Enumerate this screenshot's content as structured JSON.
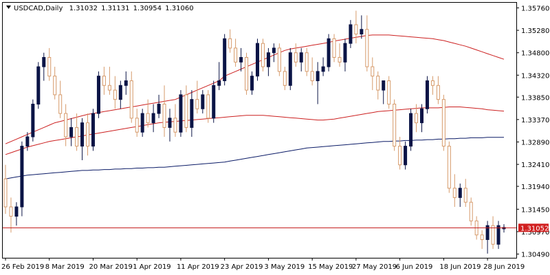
{
  "header": {
    "symbol": "USDCAD",
    "timeframe": "Daily",
    "open": "1.31032",
    "high": "1.31131",
    "low": "1.30954",
    "close": "1.31060"
  },
  "colors": {
    "up_candle": "#0b1446",
    "down_candle_stroke": "#d69a6a",
    "down_candle_fill": "#ffffff",
    "ma_red": "#cc1f1f",
    "ma_blue": "#0a1a66",
    "price_line": "#c21515",
    "price_label_bg": "#d11f1f"
  },
  "price_label": "1.31052",
  "chart_data": {
    "type": "candlestick",
    "title": "USDCAD,Daily",
    "ylim": [
      1.3041,
      1.3587
    ],
    "yticks": [
      "1.35760",
      "1.35280",
      "1.34800",
      "1.34320",
      "1.33850",
      "1.33370",
      "1.32890",
      "1.32410",
      "1.31940",
      "1.31450",
      "1.30970",
      "1.30490"
    ],
    "xticks": [
      "26 Feb 2019",
      "8 Mar 2019",
      "20 Mar 2019",
      "1 Apr 2019",
      "11 Apr 2019",
      "23 Apr 2019",
      "3 May 2019",
      "15 May 2019",
      "27 May 2019",
      "6 Jun 2019",
      "18 Jun 2019",
      "28 Jun 2019"
    ],
    "xtick_index": [
      0,
      8,
      16,
      24,
      32,
      40,
      48,
      56,
      64,
      72,
      80,
      88
    ],
    "current_price": 1.31052,
    "candles": [
      [
        1.321,
        1.324,
        1.3135,
        1.315
      ],
      [
        1.315,
        1.317,
        1.3095,
        1.313
      ],
      [
        1.313,
        1.316,
        1.311,
        1.315
      ],
      [
        1.315,
        1.329,
        1.313,
        1.328
      ],
      [
        1.328,
        1.331,
        1.327,
        1.33
      ],
      [
        1.33,
        1.338,
        1.329,
        1.337
      ],
      [
        1.337,
        1.346,
        1.336,
        1.345
      ],
      [
        1.345,
        1.348,
        1.342,
        1.347
      ],
      [
        1.347,
        1.349,
        1.342,
        1.343
      ],
      [
        1.343,
        1.345,
        1.338,
        1.339
      ],
      [
        1.339,
        1.342,
        1.334,
        1.335
      ],
      [
        1.335,
        1.337,
        1.328,
        1.33
      ],
      [
        1.33,
        1.334,
        1.328,
        1.332
      ],
      [
        1.332,
        1.335,
        1.327,
        1.328
      ],
      [
        1.328,
        1.334,
        1.325,
        1.333
      ],
      [
        1.333,
        1.335,
        1.326,
        1.328
      ],
      [
        1.328,
        1.336,
        1.327,
        1.335
      ],
      [
        1.335,
        1.344,
        1.334,
        1.343
      ],
      [
        1.343,
        1.345,
        1.339,
        1.341
      ],
      [
        1.341,
        1.345,
        1.339,
        1.34
      ],
      [
        1.34,
        1.343,
        1.336,
        1.338
      ],
      [
        1.338,
        1.342,
        1.336,
        1.341
      ],
      [
        1.341,
        1.344,
        1.339,
        1.342
      ],
      [
        1.342,
        1.344,
        1.333,
        1.334
      ],
      [
        1.334,
        1.336,
        1.33,
        1.331
      ],
      [
        1.331,
        1.336,
        1.33,
        1.335
      ],
      [
        1.335,
        1.338,
        1.332,
        1.333
      ],
      [
        1.333,
        1.337,
        1.331,
        1.335
      ],
      [
        1.335,
        1.339,
        1.334,
        1.337
      ],
      [
        1.337,
        1.341,
        1.33,
        1.332
      ],
      [
        1.332,
        1.336,
        1.329,
        1.334
      ],
      [
        1.334,
        1.337,
        1.33,
        1.331
      ],
      [
        1.331,
        1.34,
        1.33,
        1.339
      ],
      [
        1.339,
        1.341,
        1.331,
        1.332
      ],
      [
        1.332,
        1.34,
        1.33,
        1.338
      ],
      [
        1.338,
        1.342,
        1.335,
        1.336
      ],
      [
        1.336,
        1.34,
        1.335,
        1.339
      ],
      [
        1.339,
        1.34,
        1.333,
        1.334
      ],
      [
        1.334,
        1.342,
        1.333,
        1.341
      ],
      [
        1.341,
        1.346,
        1.34,
        1.342
      ],
      [
        1.342,
        1.352,
        1.341,
        1.351
      ],
      [
        1.351,
        1.353,
        1.348,
        1.349
      ],
      [
        1.349,
        1.351,
        1.345,
        1.346
      ],
      [
        1.346,
        1.349,
        1.344,
        1.347
      ],
      [
        1.347,
        1.348,
        1.339,
        1.34
      ],
      [
        1.34,
        1.344,
        1.339,
        1.343
      ],
      [
        1.343,
        1.351,
        1.342,
        1.35
      ],
      [
        1.35,
        1.351,
        1.344,
        1.345
      ],
      [
        1.345,
        1.349,
        1.343,
        1.348
      ],
      [
        1.348,
        1.35,
        1.346,
        1.349
      ],
      [
        1.349,
        1.35,
        1.343,
        1.344
      ],
      [
        1.344,
        1.345,
        1.34,
        1.341
      ],
      [
        1.341,
        1.349,
        1.34,
        1.348
      ],
      [
        1.348,
        1.35,
        1.345,
        1.346
      ],
      [
        1.346,
        1.349,
        1.344,
        1.348
      ],
      [
        1.348,
        1.349,
        1.343,
        1.344
      ],
      [
        1.344,
        1.347,
        1.341,
        1.342
      ],
      [
        1.342,
        1.346,
        1.337,
        1.344
      ],
      [
        1.344,
        1.347,
        1.343,
        1.345
      ],
      [
        1.345,
        1.352,
        1.344,
        1.351
      ],
      [
        1.351,
        1.352,
        1.346,
        1.347
      ],
      [
        1.347,
        1.35,
        1.345,
        1.346
      ],
      [
        1.346,
        1.351,
        1.344,
        1.35
      ],
      [
        1.35,
        1.355,
        1.349,
        1.354
      ],
      [
        1.354,
        1.357,
        1.35,
        1.352
      ],
      [
        1.352,
        1.356,
        1.351,
        1.353
      ],
      [
        1.353,
        1.356,
        1.344,
        1.345
      ],
      [
        1.345,
        1.347,
        1.34,
        1.343
      ],
      [
        1.343,
        1.344,
        1.338,
        1.34
      ],
      [
        1.34,
        1.342,
        1.337,
        1.342
      ],
      [
        1.342,
        1.343,
        1.336,
        1.337
      ],
      [
        1.337,
        1.338,
        1.327,
        1.328
      ],
      [
        1.328,
        1.33,
        1.323,
        1.324
      ],
      [
        1.324,
        1.329,
        1.323,
        1.328
      ],
      [
        1.328,
        1.336,
        1.327,
        1.335
      ],
      [
        1.335,
        1.337,
        1.331,
        1.333
      ],
      [
        1.333,
        1.337,
        1.331,
        1.336
      ],
      [
        1.336,
        1.343,
        1.335,
        1.342
      ],
      [
        1.342,
        1.343,
        1.339,
        1.341
      ],
      [
        1.341,
        1.343,
        1.337,
        1.338
      ],
      [
        1.338,
        1.339,
        1.327,
        1.328
      ],
      [
        1.328,
        1.329,
        1.318,
        1.319
      ],
      [
        1.319,
        1.322,
        1.315,
        1.317
      ],
      [
        1.317,
        1.32,
        1.315,
        1.319
      ],
      [
        1.319,
        1.321,
        1.315,
        1.316
      ],
      [
        1.316,
        1.317,
        1.311,
        1.312
      ],
      [
        1.312,
        1.313,
        1.308,
        1.309
      ],
      [
        1.309,
        1.31,
        1.306,
        1.308
      ],
      [
        1.308,
        1.312,
        1.305,
        1.311
      ],
      [
        1.311,
        1.313,
        1.306,
        1.307
      ],
      [
        1.307,
        1.312,
        1.306,
        1.311
      ],
      [
        1.3103,
        1.3113,
        1.3095,
        1.3106
      ]
    ],
    "ma_fast": [
      1.3285,
      1.329,
      1.3295,
      1.33,
      1.3305,
      1.331,
      1.3315,
      1.332,
      1.3325,
      1.333,
      1.3333,
      1.3336,
      1.3339,
      1.3342,
      1.3345,
      1.3348,
      1.335,
      1.3352,
      1.3354,
      1.3356,
      1.3358,
      1.336,
      1.3362,
      1.3364,
      1.3366,
      1.3368,
      1.337,
      1.3372,
      1.3374,
      1.3376,
      1.3378,
      1.338,
      1.3385,
      1.339,
      1.3395,
      1.34,
      1.3405,
      1.341,
      1.3415,
      1.342,
      1.343,
      1.3435,
      1.344,
      1.3445,
      1.345,
      1.3455,
      1.346,
      1.3465,
      1.347,
      1.3475,
      1.348,
      1.3485,
      1.3488,
      1.349,
      1.3492,
      1.3494,
      1.3496,
      1.3498,
      1.35,
      1.3502,
      1.3505,
      1.3507,
      1.3509,
      1.3511,
      1.3513,
      1.3515,
      1.3517,
      1.3518,
      1.3518,
      1.3518,
      1.3518,
      1.3517,
      1.3516,
      1.3515,
      1.3514,
      1.3513,
      1.3512,
      1.3511,
      1.351,
      1.3508,
      1.3506,
      1.3503,
      1.35,
      1.3497,
      1.3494,
      1.349,
      1.3486,
      1.3482,
      1.3478,
      1.3474,
      1.347,
      1.3466
    ],
    "ma_mid": [
      1.3262,
      1.3266,
      1.327,
      1.3274,
      1.3278,
      1.3281,
      1.3284,
      1.3287,
      1.329,
      1.3292,
      1.3294,
      1.3296,
      1.3298,
      1.33,
      1.3302,
      1.3304,
      1.3306,
      1.3308,
      1.331,
      1.3312,
      1.3314,
      1.3316,
      1.3318,
      1.332,
      1.3322,
      1.3324,
      1.3326,
      1.3328,
      1.333,
      1.3331,
      1.3332,
      1.3333,
      1.3334,
      1.3335,
      1.3336,
      1.3337,
      1.3338,
      1.3339,
      1.334,
      1.3341,
      1.3342,
      1.3343,
      1.3344,
      1.3345,
      1.3346,
      1.3346,
      1.3346,
      1.3346,
      1.3345,
      1.3344,
      1.3343,
      1.3342,
      1.3341,
      1.334,
      1.3339,
      1.3338,
      1.3337,
      1.3336,
      1.3336,
      1.3337,
      1.3338,
      1.334,
      1.3342,
      1.3344,
      1.3346,
      1.3348,
      1.335,
      1.3352,
      1.3354,
      1.3355,
      1.3356,
      1.3357,
      1.3358,
      1.3359,
      1.336,
      1.3361,
      1.3362,
      1.3362,
      1.3362,
      1.3362,
      1.3363,
      1.3364,
      1.3364,
      1.3364,
      1.3363,
      1.3362,
      1.3361,
      1.336,
      1.3358,
      1.3357,
      1.3356,
      1.3355
    ],
    "ma_slow": [
      1.321,
      1.3212,
      1.3214,
      1.3216,
      1.3218,
      1.3219,
      1.322,
      1.3221,
      1.3222,
      1.3223,
      1.3224,
      1.3225,
      1.3226,
      1.3227,
      1.3228,
      1.3228,
      1.3229,
      1.3229,
      1.323,
      1.323,
      1.3231,
      1.3231,
      1.3232,
      1.3232,
      1.3233,
      1.3233,
      1.3234,
      1.3234,
      1.3235,
      1.3235,
      1.3236,
      1.3237,
      1.3238,
      1.3239,
      1.324,
      1.3241,
      1.3242,
      1.3243,
      1.3244,
      1.3245,
      1.3246,
      1.3248,
      1.325,
      1.3252,
      1.3254,
      1.3256,
      1.3258,
      1.326,
      1.3262,
      1.3264,
      1.3266,
      1.3268,
      1.327,
      1.3272,
      1.3274,
      1.3276,
      1.3277,
      1.3278,
      1.3279,
      1.328,
      1.3281,
      1.3282,
      1.3283,
      1.3284,
      1.3285,
      1.3286,
      1.3287,
      1.3288,
      1.3289,
      1.329,
      1.329,
      1.3291,
      1.3291,
      1.3292,
      1.3292,
      1.3293,
      1.3293,
      1.3294,
      1.3294,
      1.3295,
      1.3295,
      1.3296,
      1.3296,
      1.3297,
      1.3297,
      1.3298,
      1.3298,
      1.3298,
      1.3299,
      1.3299,
      1.3299,
      1.3299
    ]
  }
}
